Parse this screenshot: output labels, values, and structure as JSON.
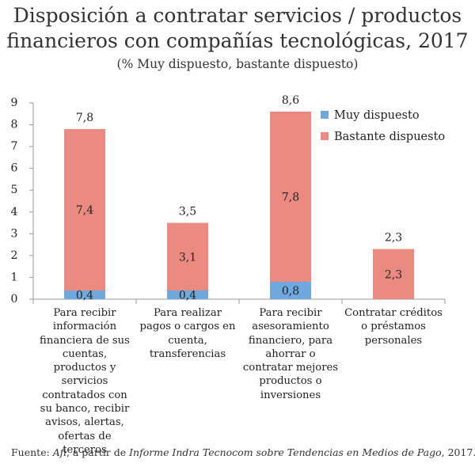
{
  "title_line1": "Disposición a contratar servicios / productos",
  "title_line2": "financieros con compañías tecnológicas, 2017",
  "subtitle": "(% Muy dispuesto, bastante dispuesto)",
  "source": {
    "prefix": "Fuente: ",
    "italic1": "Afi",
    "middle": ", a partir de ",
    "italic2": "Informe Indra Tecnocom sobre Tendencias en Medios de Pago",
    "suffix": ", 2017."
  },
  "colors": {
    "muy": "#6fa8dc",
    "bastante": "#ea8a80",
    "axis": "#9a9a9a"
  },
  "chart_data": {
    "type": "bar",
    "stacked": true,
    "title": "Disposición a contratar servicios / productos financieros con compañías tecnológicas, 2017",
    "subtitle": "(% Muy dispuesto, bastante dispuesto)",
    "categories": [
      "Para recibir información financiera de sus cuentas, productos y servicios contratados con su banco, recibir avisos, alertas, ofertas de terceros",
      "Para realizar pagos o cargos en cuenta, transferencias",
      "Para recibir asesoramiento financiero, para ahorrar o contratar mejores productos o inversiones",
      "Contratar créditos o préstamos personales"
    ],
    "series": [
      {
        "name": "Muy dispuesto",
        "values": [
          0.4,
          0.4,
          0.8,
          0.0
        ],
        "labels": [
          "0,4",
          "0,4",
          "0,8",
          ""
        ]
      },
      {
        "name": "Bastante dispuesto",
        "values": [
          7.4,
          3.1,
          7.8,
          2.3
        ],
        "labels": [
          "7,4",
          "3,1",
          "7,8",
          "2,3"
        ]
      }
    ],
    "totals": [
      7.8,
      3.5,
      8.6,
      2.3
    ],
    "total_labels": [
      "7,8",
      "3,5",
      "8,6",
      "2,3"
    ],
    "ylim": [
      0,
      9
    ],
    "yticks": [
      "0",
      "1",
      "2",
      "3",
      "4",
      "5",
      "6",
      "7",
      "8",
      "9"
    ],
    "legend_position": "top-right",
    "grid": false
  }
}
